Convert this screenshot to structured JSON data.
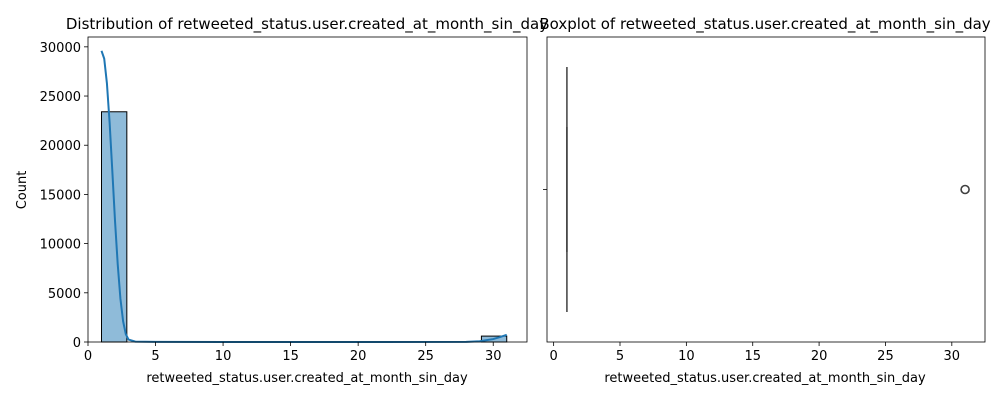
{
  "chart_data": [
    {
      "type": "bar",
      "subtype": "histogram-with-kde",
      "title": "Distribution of retweeted_status.user.created_at_month_sin_day",
      "xlabel": "retweeted_status.user.created_at_month_sin_day",
      "ylabel": "Count",
      "xlim": [
        0,
        32.5
      ],
      "ylim": [
        0,
        31000
      ],
      "xticks": [
        0,
        5,
        10,
        15,
        20,
        25,
        30
      ],
      "yticks": [
        0,
        5000,
        10000,
        15000,
        20000,
        25000,
        30000
      ],
      "grid": false,
      "bar_color": "#1f77b4",
      "line_color": "#1f77b4",
      "bins": [
        {
          "start": 1,
          "end": 2.875,
          "count": 23400
        },
        {
          "start": 29.125,
          "end": 31,
          "count": 600
        }
      ],
      "kde": {
        "x": [
          1,
          1.2,
          1.4,
          1.6,
          1.8,
          2,
          2.2,
          2.4,
          2.6,
          2.8,
          3,
          3.5,
          5,
          10,
          20,
          28,
          29,
          30,
          30.5,
          31
        ],
        "y": [
          29600,
          28800,
          26300,
          22300,
          17400,
          12300,
          7900,
          4400,
          2100,
          800,
          250,
          40,
          10,
          5,
          5,
          10,
          80,
          300,
          500,
          730
        ]
      }
    },
    {
      "type": "box",
      "title": "Boxplot of retweeted_status.user.created_at_month_sin_day",
      "xlabel": "retweeted_status.user.created_at_month_sin_day",
      "xlim": [
        -0.5,
        32.5
      ],
      "xticks": [
        0,
        5,
        10,
        15,
        20,
        25,
        30
      ],
      "grid": false,
      "box_color": "#1f77b4",
      "whisker_low": 1,
      "q1": 1,
      "median": 1,
      "q3": 1,
      "whisker_high": 1,
      "outliers": [
        31
      ]
    }
  ]
}
